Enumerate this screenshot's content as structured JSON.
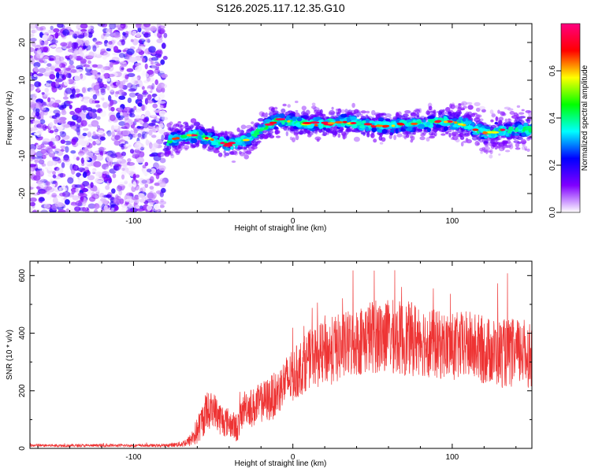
{
  "chart_data": [
    {
      "type": "heatmap",
      "title": "S126.2025.117.12.35.G10",
      "xlabel": "Height of straight line (km)",
      "ylabel": "Frequency (Hz)",
      "xlim": [
        -165,
        150
      ],
      "ylim": [
        -25,
        25
      ],
      "xticks": [
        -100,
        0,
        100
      ],
      "yticks": [
        -20,
        -10,
        0,
        10,
        20
      ],
      "grid": false,
      "noise_region_x": [
        -165,
        -80
      ],
      "ridge": {
        "x": [
          -80,
          -70,
          -60,
          -50,
          -40,
          -30,
          -20,
          -10,
          0,
          10,
          20,
          30,
          40,
          50,
          60,
          70,
          80,
          90,
          100,
          110,
          120,
          130,
          140,
          150
        ],
        "freq": [
          -6.5,
          -5,
          -4.5,
          -6,
          -7,
          -6,
          -3,
          -0.5,
          -1,
          -1.5,
          -1.5,
          -1,
          -1.5,
          -2,
          -2,
          -1.5,
          -1.5,
          -1,
          -1,
          -2,
          -4,
          -3.5,
          -3,
          -3
        ]
      },
      "colorbar": {
        "label": "Normalized spectral amplitude",
        "range": [
          0,
          0.8
        ],
        "ticks": [
          "0.0",
          "0.2",
          "0.4",
          "0.6"
        ],
        "colormap": [
          "#ffffff",
          "#8000ff",
          "#0000ff",
          "#00ffff",
          "#00ff00",
          "#ffff00",
          "#ff0000",
          "#ff0080"
        ]
      }
    },
    {
      "type": "line",
      "xlabel": "Height of straight line (km)",
      "ylabel": "SNR (10 * v/v)",
      "xlim": [
        -165,
        150
      ],
      "ylim": [
        0,
        650
      ],
      "xticks": [
        -100,
        0,
        100
      ],
      "yticks": [
        0,
        200,
        400,
        600
      ],
      "grid": false,
      "color": "#ee3333",
      "series": [
        {
          "x": [
            -165,
            -140,
            -120,
            -100,
            -80,
            -70,
            -65,
            -60,
            -55,
            -50,
            -45,
            -40,
            -35,
            -30,
            -25,
            -20,
            -15,
            -10,
            -5,
            0,
            5,
            10,
            15,
            20,
            25,
            30,
            40,
            50,
            60,
            70,
            80,
            90,
            100,
            110,
            120,
            130,
            140,
            150
          ],
          "values": [
            10,
            10,
            10,
            10,
            10,
            15,
            25,
            60,
            120,
            140,
            100,
            90,
            70,
            150,
            140,
            160,
            170,
            190,
            230,
            250,
            280,
            310,
            320,
            330,
            340,
            350,
            370,
            390,
            390,
            380,
            380,
            360,
            350,
            360,
            340,
            330,
            330,
            330
          ],
          "spread": [
            5,
            5,
            5,
            5,
            5,
            10,
            20,
            50,
            70,
            60,
            60,
            50,
            50,
            60,
            70,
            70,
            80,
            80,
            90,
            90,
            100,
            100,
            110,
            110,
            120,
            120,
            120,
            130,
            130,
            130,
            130,
            120,
            120,
            120,
            120,
            120,
            120,
            120
          ]
        }
      ]
    }
  ]
}
